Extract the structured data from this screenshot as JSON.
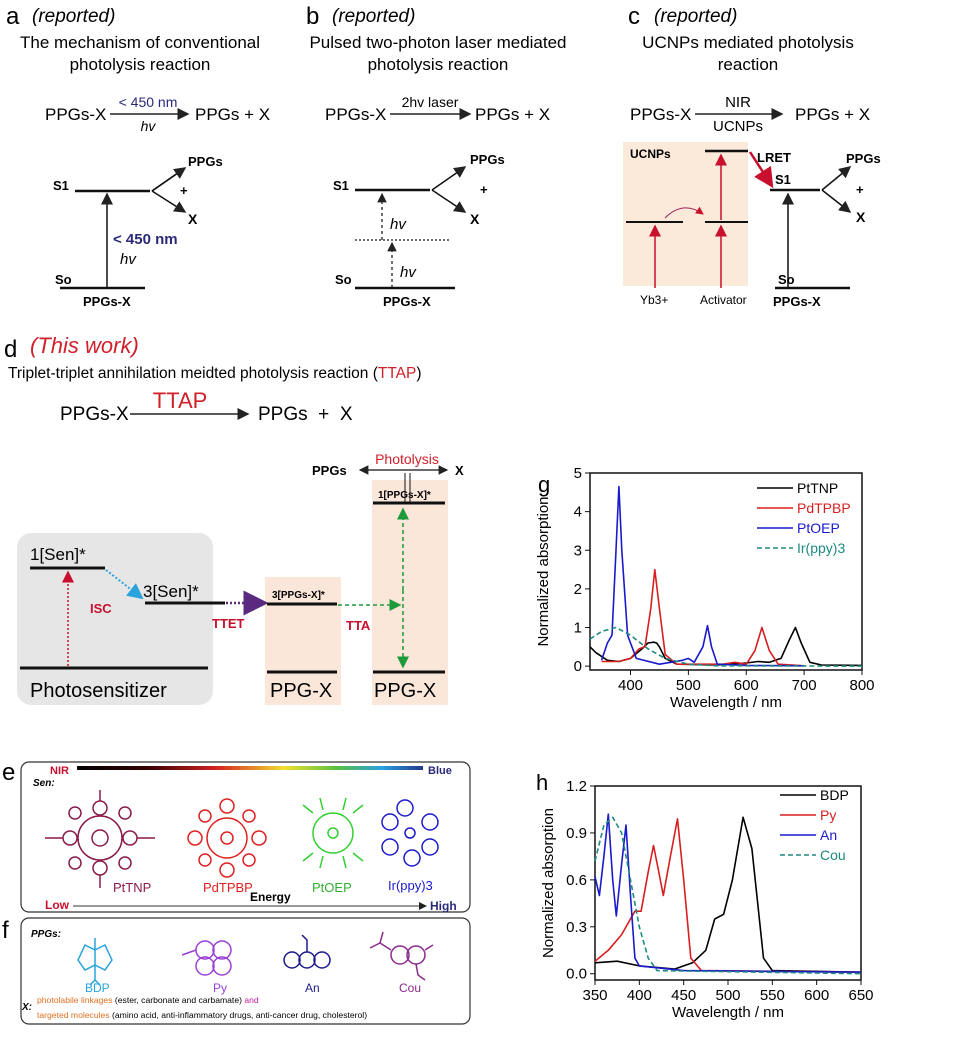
{
  "panel_a": {
    "letter": "a",
    "tag": "(reported)",
    "title1": "The mechanism of conventional",
    "title2": "photolysis reaction",
    "reactant": "PPGs-X",
    "condition_top": "< 450 nm",
    "condition_bottom": "hv",
    "product": "PPGs + X",
    "s1": "S1",
    "s0": "So",
    "ground": "PPGs-X",
    "excite": "< 450 nm",
    "hv": "hv",
    "out_ppgs": "PPGs",
    "plus": "+",
    "out_x": "X"
  },
  "panel_b": {
    "letter": "b",
    "tag": "(reported)",
    "title1": "Pulsed two-photon laser mediated",
    "title2": "photolysis reaction",
    "reactant": "PPGs-X",
    "condition_top": "2hv laser",
    "product": "PPGs + X",
    "s1": "S1",
    "s0": "So",
    "ground": "PPGs-X",
    "hv1": "hv",
    "hv2": "hv",
    "out_ppgs": "PPGs",
    "plus": "+",
    "out_x": "X"
  },
  "panel_c": {
    "letter": "c",
    "tag": "(reported)",
    "title1": "UCNPs mediated photolysis",
    "title2": "reaction",
    "reactant": "PPGs-X",
    "condition_top": "NIR",
    "condition_bottom": "UCNPs",
    "product": "PPGs + X",
    "ucnps": "UCNPs",
    "yb": "Yb3+",
    "activator": "Activator",
    "lret": "LRET",
    "s1": "S1",
    "s0": "So",
    "ground": "PPGs-X",
    "out_ppgs": "PPGs",
    "plus": "+",
    "out_x": "X"
  },
  "panel_d": {
    "letter": "d",
    "tag": "(This work)",
    "subtitle_pre": "Triplet-triplet annihilation meidted photolysis reaction (",
    "subtitle_acr": "TTAP",
    "subtitle_post": ")",
    "reactant": "PPGs-X",
    "condition": "TTAP",
    "product": "PPGs  +  X",
    "sen1": "1[Sen]*",
    "sen3": "3[Sen]*",
    "isc": "ISC",
    "ttet": "TTET",
    "tta": "TTA",
    "ppgx3": "3[PPGs-X]*",
    "ppgx1": "1[PPGs-X]*",
    "photosensitizer": "Photosensitizer",
    "ppgx_a": "PPG-X",
    "ppgx_b": "PPG-X",
    "photolysis": "Photolysis",
    "out_ppgs": "PPGs",
    "out_x": "X",
    "colors": {
      "accent": "#d0202a",
      "box": "#e6e6e6",
      "peach": "#fbe6da"
    }
  },
  "panel_e": {
    "letter": "e",
    "nir": "NIR",
    "blue": "Blue",
    "sen": "Sen:",
    "molecules": [
      "PtTNP",
      "PdTPBP",
      "PtOEP",
      "Ir(ppy)3"
    ],
    "energy": "Energy",
    "low": "Low",
    "high": "High"
  },
  "panel_f": {
    "letter": "f",
    "ppgs": "PPGs:",
    "molecules": [
      "BDP",
      "Py",
      "An",
      "Cou"
    ],
    "x_label": "X:",
    "line1_a": "photolabile linkages",
    "line1_b": " (ester, carbonate and carbamate) ",
    "line1_c": "and",
    "line2_a": "targeted molecules",
    "line2_b": " (amino acid, anti-inflammatory drugs, anti-cancer drug, cholesterol)"
  },
  "chart_data": [
    {
      "letter": "g",
      "type": "line",
      "xlabel": "Wavelength / nm",
      "ylabel": "Normalized absorption",
      "xlim": [
        330,
        800
      ],
      "ylim": [
        -0.1,
        5
      ],
      "xticks": [
        400,
        500,
        600,
        700,
        800
      ],
      "yticks": [
        0,
        1,
        2,
        3,
        4,
        5
      ],
      "legend": "top-right",
      "series": [
        {
          "name": "PtTNP",
          "color": "#000000",
          "dash": false,
          "points": [
            [
              330,
              0.5
            ],
            [
              340,
              0.35
            ],
            [
              360,
              0.15
            ],
            [
              380,
              0.12
            ],
            [
              400,
              0.2
            ],
            [
              420,
              0.45
            ],
            [
              430,
              0.6
            ],
            [
              440,
              0.62
            ],
            [
              445,
              0.6
            ],
            [
              450,
              0.5
            ],
            [
              460,
              0.2
            ],
            [
              480,
              0.05
            ],
            [
              550,
              0.03
            ],
            [
              600,
              0.08
            ],
            [
              620,
              0.12
            ],
            [
              640,
              0.1
            ],
            [
              660,
              0.2
            ],
            [
              675,
              0.7
            ],
            [
              685,
              1.0
            ],
            [
              695,
              0.6
            ],
            [
              710,
              0.1
            ],
            [
              730,
              0.03
            ],
            [
              800,
              0.02
            ]
          ]
        },
        {
          "name": "PdTPBP",
          "color": "#d81e1e",
          "dash": false,
          "points": [
            [
              350,
              0.12
            ],
            [
              380,
              0.12
            ],
            [
              400,
              0.2
            ],
            [
              415,
              0.45
            ],
            [
              425,
              0.5
            ],
            [
              435,
              1.5
            ],
            [
              442,
              2.5
            ],
            [
              450,
              1.5
            ],
            [
              460,
              0.3
            ],
            [
              480,
              0.05
            ],
            [
              560,
              0.05
            ],
            [
              580,
              0.1
            ],
            [
              600,
              0.05
            ],
            [
              615,
              0.4
            ],
            [
              627,
              1.0
            ],
            [
              640,
              0.4
            ],
            [
              655,
              0.05
            ],
            [
              700,
              0.01
            ]
          ]
        },
        {
          "name": "PtOEP",
          "color": "#1a1acc",
          "dash": false,
          "points": [
            [
              350,
              0.15
            ],
            [
              360,
              0.6
            ],
            [
              368,
              0.8
            ],
            [
              375,
              3.0
            ],
            [
              380,
              4.65
            ],
            [
              385,
              3.0
            ],
            [
              395,
              0.8
            ],
            [
              410,
              0.2
            ],
            [
              450,
              0.05
            ],
            [
              490,
              0.15
            ],
            [
              500,
              0.2
            ],
            [
              510,
              0.1
            ],
            [
              525,
              0.5
            ],
            [
              533,
              1.05
            ],
            [
              540,
              0.5
            ],
            [
              550,
              0.05
            ],
            [
              600,
              0.02
            ],
            [
              700,
              0.01
            ]
          ]
        },
        {
          "name": "Ir(ppy)3",
          "color": "#1f8a80",
          "dash": true,
          "points": [
            [
              330,
              0.7
            ],
            [
              350,
              0.9
            ],
            [
              375,
              1.0
            ],
            [
              400,
              0.8
            ],
            [
              430,
              0.45
            ],
            [
              460,
              0.2
            ],
            [
              500,
              0.05
            ],
            [
              550,
              0.01
            ],
            [
              800,
              0.0
            ]
          ]
        }
      ]
    },
    {
      "letter": "h",
      "type": "line",
      "xlabel": "Wavelength / nm",
      "ylabel": "Normalized absorption",
      "xlim": [
        350,
        650
      ],
      "ylim": [
        -0.04,
        1.2
      ],
      "xticks": [
        350,
        400,
        450,
        500,
        550,
        600,
        650
      ],
      "yticks": [
        "0.0",
        "0.3",
        "0.6",
        "0.9",
        "1.2"
      ],
      "legend": "top-right",
      "series": [
        {
          "name": "BDP",
          "color": "#000000",
          "dash": false,
          "points": [
            [
              350,
              0.07
            ],
            [
              375,
              0.08
            ],
            [
              400,
              0.05
            ],
            [
              440,
              0.03
            ],
            [
              460,
              0.07
            ],
            [
              475,
              0.15
            ],
            [
              485,
              0.35
            ],
            [
              495,
              0.38
            ],
            [
              505,
              0.6
            ],
            [
              517,
              1.0
            ],
            [
              527,
              0.8
            ],
            [
              540,
              0.1
            ],
            [
              550,
              0.02
            ],
            [
              650,
              0.01
            ]
          ]
        },
        {
          "name": "Py",
          "color": "#d81e1e",
          "dash": false,
          "points": [
            [
              350,
              0.08
            ],
            [
              365,
              0.15
            ],
            [
              380,
              0.25
            ],
            [
              395,
              0.4
            ],
            [
              402,
              0.4
            ],
            [
              410,
              0.65
            ],
            [
              416,
              0.82
            ],
            [
              422,
              0.65
            ],
            [
              427,
              0.5
            ],
            [
              435,
              0.75
            ],
            [
              443,
              0.99
            ],
            [
              450,
              0.6
            ],
            [
              458,
              0.1
            ],
            [
              470,
              0.02
            ],
            [
              650,
              0.01
            ]
          ]
        },
        {
          "name": "An",
          "color": "#1a1acc",
          "dash": false,
          "points": [
            [
              350,
              0.62
            ],
            [
              355,
              0.5
            ],
            [
              360,
              0.75
            ],
            [
              365,
              1.02
            ],
            [
              370,
              0.6
            ],
            [
              374,
              0.37
            ],
            [
              380,
              0.7
            ],
            [
              385,
              0.95
            ],
            [
              390,
              0.5
            ],
            [
              395,
              0.1
            ],
            [
              400,
              0.05
            ],
            [
              450,
              0.02
            ],
            [
              650,
              0.01
            ]
          ]
        },
        {
          "name": "Cou",
          "color": "#1f8a80",
          "dash": true,
          "points": [
            [
              350,
              0.72
            ],
            [
              360,
              0.95
            ],
            [
              370,
              1.0
            ],
            [
              380,
              0.9
            ],
            [
              390,
              0.6
            ],
            [
              400,
              0.3
            ],
            [
              410,
              0.1
            ],
            [
              420,
              0.02
            ],
            [
              650,
              0.0
            ]
          ]
        }
      ]
    }
  ]
}
